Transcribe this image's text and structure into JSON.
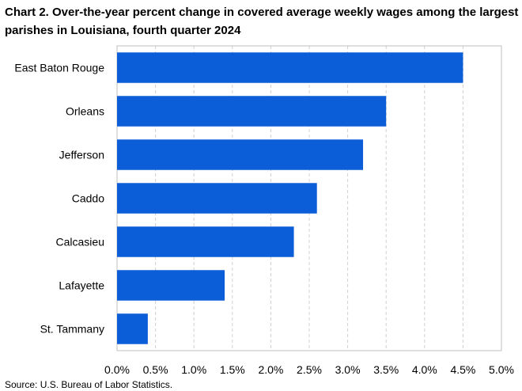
{
  "chart_data": {
    "type": "bar",
    "orientation": "horizontal",
    "title": "Chart 2. Over-the-year percent change in covered average weekly wages among the largest parishes in Louisiana, fourth quarter 2024",
    "categories": [
      "East Baton Rouge",
      "Orleans",
      "Jefferson",
      "Caddo",
      "Calcasieu",
      "Lafayette",
      "St. Tammany"
    ],
    "values": [
      4.5,
      3.5,
      3.2,
      2.6,
      2.3,
      1.4,
      0.4
    ],
    "xlim": [
      0,
      5
    ],
    "ticks": [
      "0.0%",
      "0.5%",
      "1.0%",
      "1.5%",
      "2.0%",
      "2.5%",
      "3.0%",
      "3.5%",
      "4.0%",
      "4.5%",
      "5.0%"
    ],
    "grid": "vertical dashed",
    "legend": "none",
    "bar_color": "#0b5ed7",
    "source": "Source: U.S. Bureau of Labor Statistics."
  }
}
